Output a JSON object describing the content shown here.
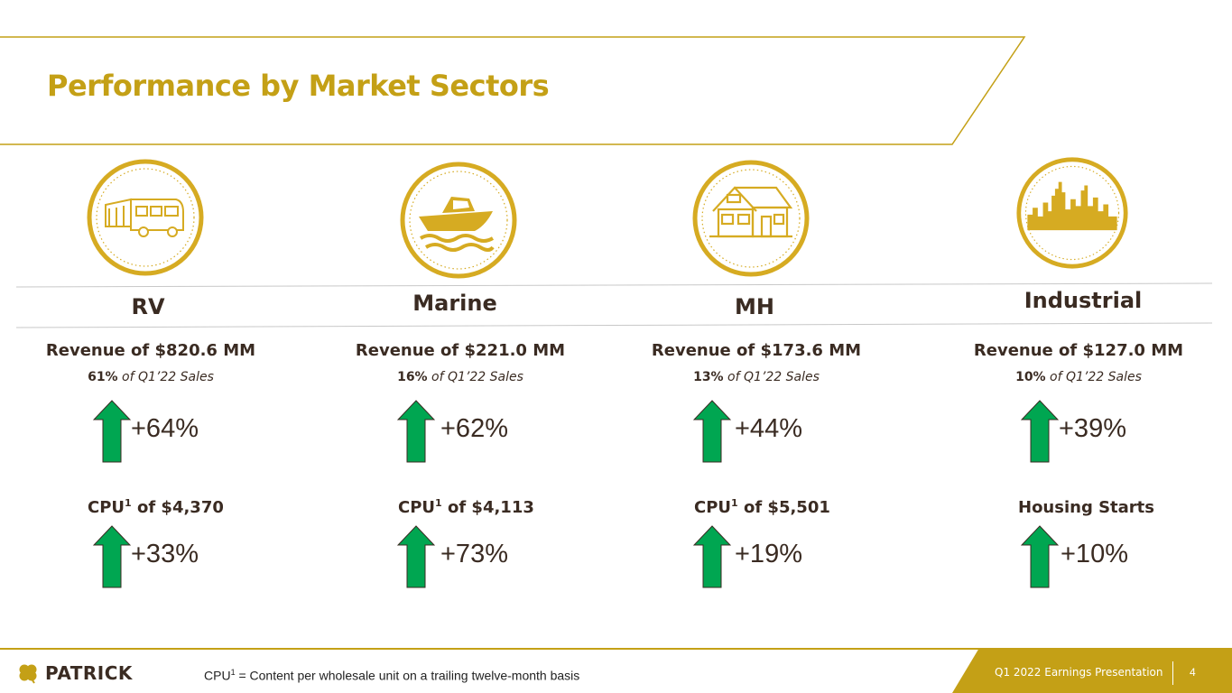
{
  "title": "Performance by Market Sectors",
  "colors": {
    "gold": "#c4a016",
    "arrow_green": "#00a651",
    "text_dark": "#3a2b22"
  },
  "sectors": [
    {
      "name": "RV",
      "icon": "rv-icon",
      "revenue": "Revenue of $820.6 MM",
      "share_pct": "61%",
      "share_of": "of Q1’22 Sales",
      "growth1": "+64%",
      "metric_prefix": "CPU",
      "metric_sup": "1",
      "metric_suffix": " of $4,370",
      "growth2": "+33%"
    },
    {
      "name": "Marine",
      "icon": "boat-icon",
      "revenue": "Revenue of $221.0 MM",
      "share_pct": "16%",
      "share_of": "of Q1’22 Sales",
      "growth1": "+62%",
      "metric_prefix": "CPU",
      "metric_sup": "1",
      "metric_suffix": " of $4,113",
      "growth2": "+73%"
    },
    {
      "name": "MH",
      "icon": "house-icon",
      "revenue": "Revenue of $173.6 MM",
      "share_pct": "13%",
      "share_of": "of Q1’22 Sales",
      "growth1": "+44%",
      "metric_prefix": "CPU",
      "metric_sup": "1",
      "metric_suffix": " of $5,501",
      "growth2": "+19%"
    },
    {
      "name": "Industrial",
      "icon": "city-skyline-icon",
      "revenue": "Revenue of $127.0 MM",
      "share_pct": "10%",
      "share_of": "of Q1’22 Sales",
      "growth1": "+39%",
      "metric_prefix": "Housing Starts",
      "metric_sup": "",
      "metric_suffix": "",
      "growth2": "+10%"
    }
  ],
  "footer": {
    "logo_text": "PATRICK",
    "logo_icon": "shamrock-icon",
    "footnote_prefix": "CPU",
    "footnote_sup": "1",
    "footnote_text": " = Content per wholesale unit on a trailing twelve-month basis",
    "presentation": "Q1 2022 Earnings Presentation",
    "page_number": "4"
  }
}
